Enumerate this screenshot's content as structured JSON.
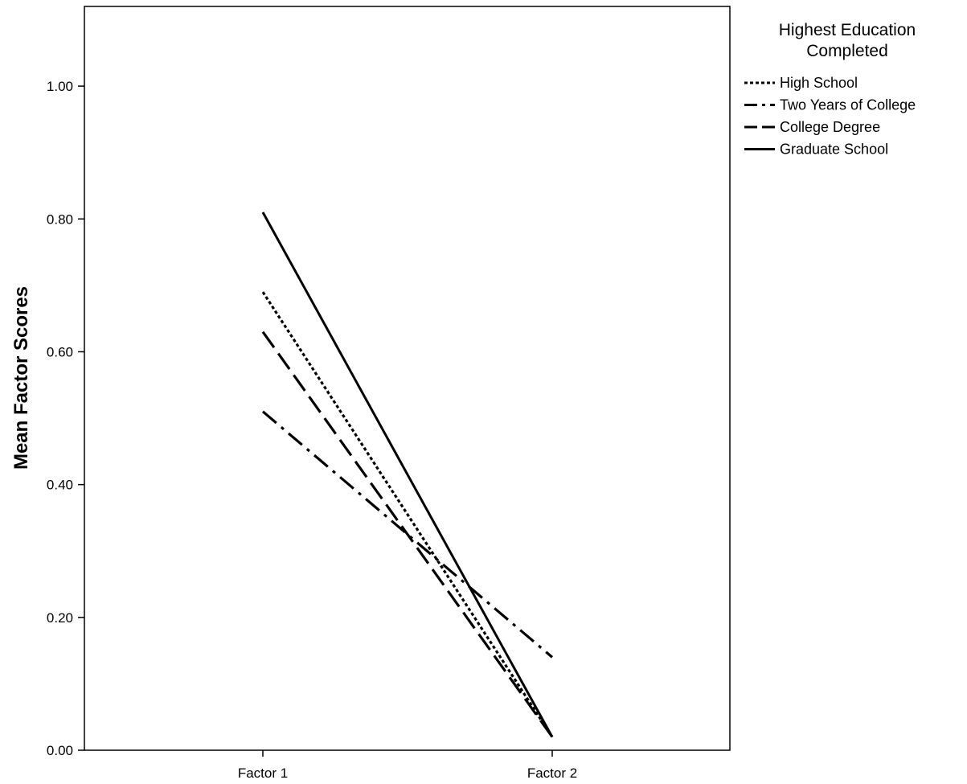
{
  "chart_data": {
    "type": "line",
    "title": "",
    "xlabel": "",
    "ylabel": "Mean Factor Scores",
    "categories": [
      "Factor 1",
      "Factor 2"
    ],
    "ylim": [
      0,
      1.12
    ],
    "yticks": [
      "0.00",
      "0.20",
      "0.40",
      "0.60",
      "0.80",
      "1.00"
    ],
    "ytick_values": [
      0,
      0.2,
      0.4,
      0.6,
      0.8,
      1.0
    ],
    "grid": false,
    "legend": {
      "title": [
        "Highest Education",
        "Completed"
      ],
      "position": "right"
    },
    "series": [
      {
        "name": "High School",
        "values": [
          0.69,
          0.02
        ],
        "style": "dotted"
      },
      {
        "name": "Two Years of College",
        "values": [
          0.51,
          0.14
        ],
        "style": "dash-dot"
      },
      {
        "name": "College Degree",
        "values": [
          0.63,
          0.02
        ],
        "style": "dashed"
      },
      {
        "name": "Graduate School",
        "values": [
          0.81,
          0.02
        ],
        "style": "solid"
      }
    ],
    "colors": {
      "line": "#000000",
      "frame": "#000000",
      "background": "#ffffff"
    }
  }
}
